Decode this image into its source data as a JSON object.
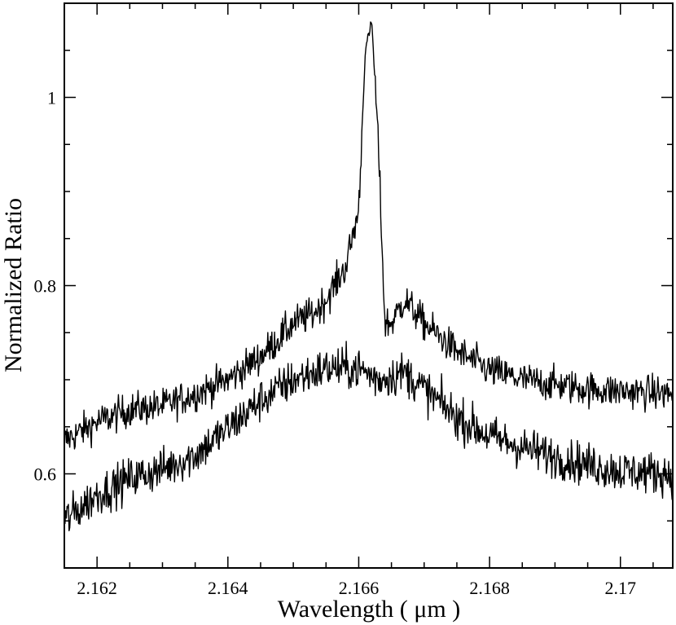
{
  "chart_data": {
    "type": "line",
    "title": "",
    "xlabel": "Wavelength ( μm )",
    "ylabel": "Normalized Ratio",
    "xlim": [
      2.1615,
      2.1708
    ],
    "ylim": [
      0.5,
      1.1
    ],
    "x_ticks": [
      2.162,
      2.164,
      2.166,
      2.168,
      2.17
    ],
    "x_tick_labels": [
      "2.162",
      "2.164",
      "2.166",
      "2.168",
      "2.17"
    ],
    "x_minor_step": 0.0005,
    "y_ticks": [
      0.6,
      0.8,
      1.0
    ],
    "y_tick_labels": [
      "0.6",
      "0.8",
      "1"
    ],
    "y_minor_step": 0.05,
    "grid": false,
    "line_color": "#000000",
    "series": [
      {
        "values_anchor_x": [
          2.1615,
          2.162,
          2.1625,
          2.163,
          2.1635,
          2.164,
          2.1645,
          2.1648,
          2.165,
          2.1653,
          2.1655,
          2.1658,
          2.166,
          2.1661,
          2.1662,
          2.1663,
          2.1664,
          2.1665,
          2.1667,
          2.167,
          2.1675,
          2.168,
          2.1685,
          2.169,
          2.1695,
          2.17,
          2.1708
        ],
        "values_anchor_y": [
          0.635,
          0.655,
          0.668,
          0.672,
          0.685,
          0.7,
          0.725,
          0.745,
          0.76,
          0.77,
          0.785,
          0.82,
          0.88,
          1.05,
          1.08,
          0.95,
          0.76,
          0.76,
          0.785,
          0.76,
          0.73,
          0.71,
          0.7,
          0.695,
          0.69,
          0.688,
          0.685
        ],
        "noise": 0.009
      },
      {
        "values_anchor_x": [
          2.1615,
          2.162,
          2.1625,
          2.163,
          2.1635,
          2.164,
          2.1645,
          2.165,
          2.1655,
          2.166,
          2.1663,
          2.1667,
          2.167,
          2.1675,
          2.168,
          2.1685,
          2.169,
          2.1695,
          2.17,
          2.1708
        ],
        "values_anchor_y": [
          0.55,
          0.578,
          0.595,
          0.605,
          0.62,
          0.648,
          0.678,
          0.7,
          0.712,
          0.712,
          0.7,
          0.708,
          0.69,
          0.66,
          0.64,
          0.628,
          0.618,
          0.61,
          0.603,
          0.6
        ],
        "noise": 0.011
      }
    ]
  }
}
